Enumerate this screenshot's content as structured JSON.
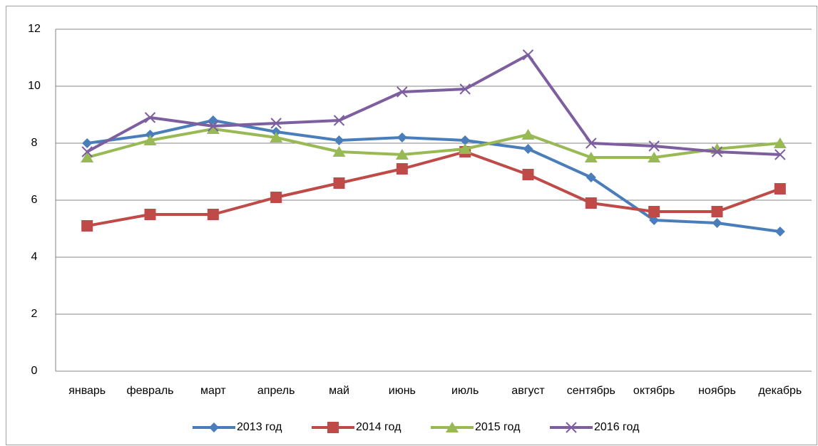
{
  "chart_data": {
    "type": "line",
    "categories": [
      "январь",
      "февраль",
      "март",
      "апрель",
      "май",
      "июнь",
      "июль",
      "август",
      "сентябрь",
      "октябрь",
      "ноябрь",
      "декабрь"
    ],
    "series": [
      {
        "name": "2013 год",
        "color": "#4a7ebb",
        "marker": "diamond",
        "values": [
          8.0,
          8.3,
          8.8,
          8.4,
          8.1,
          8.2,
          8.1,
          7.8,
          6.8,
          5.3,
          5.2,
          4.9
        ]
      },
      {
        "name": "2014 год",
        "color": "#be4b48",
        "marker": "square",
        "values": [
          5.1,
          5.5,
          5.5,
          6.1,
          6.6,
          7.1,
          7.7,
          6.9,
          5.9,
          5.6,
          5.6,
          6.4
        ]
      },
      {
        "name": "2015 год",
        "color": "#98b954",
        "marker": "triangle",
        "values": [
          7.5,
          8.1,
          8.5,
          8.2,
          7.7,
          7.6,
          7.8,
          8.3,
          7.5,
          7.5,
          7.8,
          8.0
        ]
      },
      {
        "name": "2016 год",
        "color": "#7d5fa0",
        "marker": "x",
        "values": [
          7.7,
          8.9,
          8.6,
          8.7,
          8.8,
          9.8,
          9.9,
          11.1,
          8.0,
          7.9,
          7.7,
          7.6
        ]
      }
    ],
    "ylim": [
      0,
      12
    ],
    "yticks": [
      0,
      2,
      4,
      6,
      8,
      10,
      12
    ],
    "grid": true,
    "legend": "bottom"
  }
}
